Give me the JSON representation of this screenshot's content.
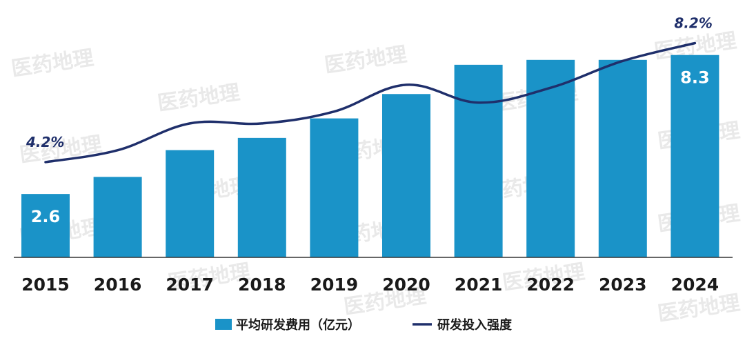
{
  "watermark": "医药地理",
  "colors": {
    "bar": "#1a93c8",
    "line": "#1f2f6b",
    "axis": "#333333"
  },
  "chart_data": {
    "type": "bar",
    "categories": [
      "2015",
      "2016",
      "2017",
      "2018",
      "2019",
      "2020",
      "2021",
      "2022",
      "2023",
      "2024"
    ],
    "ylim": [
      0,
      9
    ],
    "series": [
      {
        "name": "平均研发费用（亿元）",
        "type": "bar",
        "values": [
          2.6,
          3.3,
          4.4,
          4.9,
          5.7,
          6.7,
          7.9,
          8.1,
          8.1,
          8.3
        ],
        "data_labels": {
          "0": "2.6",
          "9": "8.3"
        }
      },
      {
        "name": "研发投入强度",
        "type": "line",
        "smooth": true,
        "values": [
          4.2,
          4.6,
          5.5,
          5.5,
          5.9,
          6.8,
          6.2,
          6.7,
          7.6,
          8.2
        ],
        "unit": "%",
        "ylim": [
          0,
          9
        ],
        "data_labels": {
          "0": "4.2%",
          "9": "8.2%"
        }
      }
    ],
    "legend": "bottom",
    "grid": false
  }
}
